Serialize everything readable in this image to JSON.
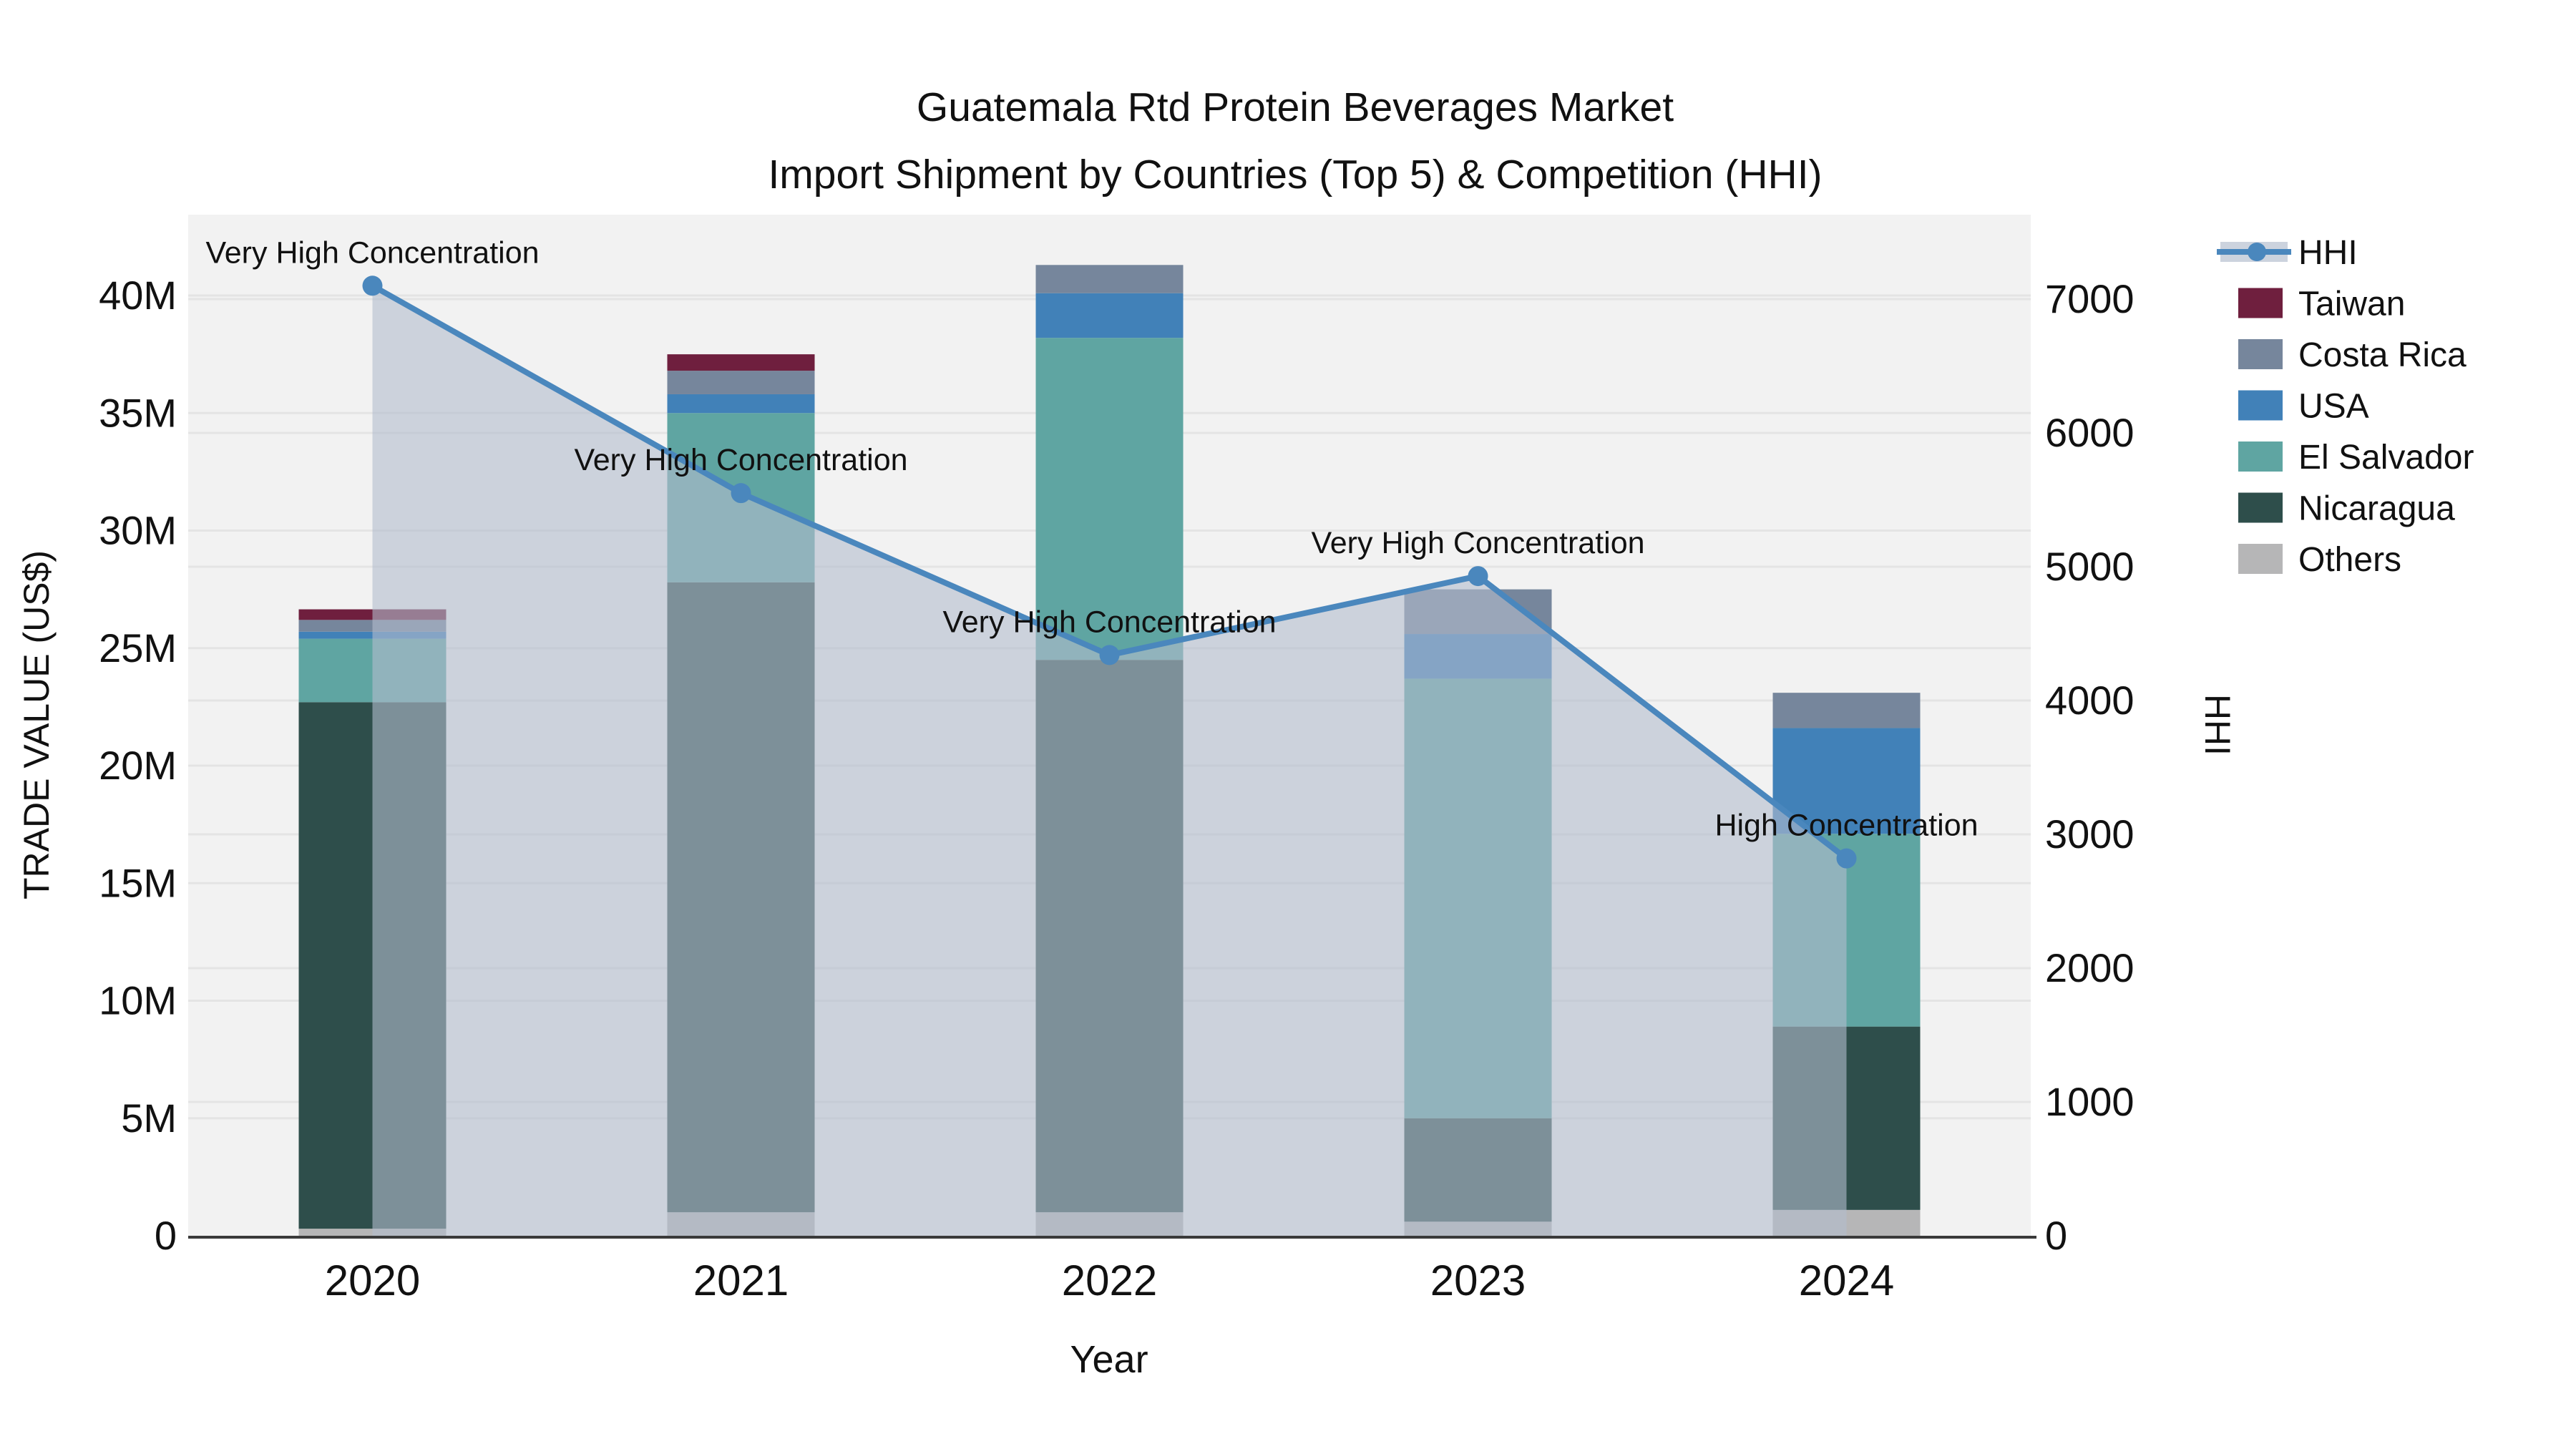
{
  "title": {
    "line1": "Guatemala Rtd Protein Beverages Market",
    "line2": "Import Shipment by Countries (Top 5) & Competition (HHI)"
  },
  "axes": {
    "x_label": "Year",
    "y_left_label": "TRADE VALUE (US$)",
    "y_right_label": "HHI",
    "y_left_ticks": [
      "0",
      "5M",
      "10M",
      "15M",
      "20M",
      "25M",
      "30M",
      "35M",
      "40M"
    ],
    "y_right_ticks": [
      "0",
      "1000",
      "2000",
      "3000",
      "4000",
      "5000",
      "6000",
      "7000"
    ]
  },
  "legend": {
    "position": "right",
    "items": [
      {
        "label": "HHI",
        "type": "line",
        "color": "#4a87bd"
      },
      {
        "label": "Taiwan",
        "type": "swatch",
        "color": "#6f1f3e"
      },
      {
        "label": "Costa Rica",
        "type": "swatch",
        "color": "#76869c"
      },
      {
        "label": "USA",
        "type": "swatch",
        "color": "#4181b8"
      },
      {
        "label": "El Salvador",
        "type": "swatch",
        "color": "#5fa5a2"
      },
      {
        "label": "Nicaragua",
        "type": "swatch",
        "color": "#2e4e4b"
      },
      {
        "label": "Others",
        "type": "swatch",
        "color": "#b6b6b7"
      }
    ]
  },
  "chart_data": {
    "type": "bar",
    "subtype": "stacked-bar-with-line-overlay",
    "title": "Guatemala Rtd Protein Beverages Market — Import Shipment by Countries (Top 5) & Competition (HHI)",
    "categories": [
      "2020",
      "2021",
      "2022",
      "2023",
      "2024"
    ],
    "unit_left": "US$ millions",
    "unit_right": "HHI index",
    "xlabel": "Year",
    "ylabel_left": "TRADE VALUE (US$)",
    "ylabel_right": "HHI",
    "ylim_left_musd": [
      0,
      43.4
    ],
    "ylim_right": [
      0,
      7630
    ],
    "grid": true,
    "legend_position": "right",
    "stack_order_bottom_to_top": [
      "Others",
      "Nicaragua",
      "El Salvador",
      "USA",
      "Costa Rica",
      "Taiwan"
    ],
    "series": [
      {
        "name": "Others",
        "color": "#b6b6b7",
        "values_musd": [
          0.3,
          1.0,
          1.0,
          0.6,
          1.1
        ]
      },
      {
        "name": "Nicaragua",
        "color": "#2e4e4b",
        "values_musd": [
          22.4,
          26.8,
          23.5,
          4.4,
          7.8
        ]
      },
      {
        "name": "El Salvador",
        "color": "#5fa5a2",
        "values_musd": [
          2.7,
          7.2,
          13.7,
          18.7,
          8.2
        ]
      },
      {
        "name": "USA",
        "color": "#4181b8",
        "values_musd": [
          0.3,
          0.8,
          1.9,
          1.9,
          4.5
        ]
      },
      {
        "name": "Costa Rica",
        "color": "#76869c",
        "values_musd": [
          0.5,
          1.0,
          1.2,
          1.9,
          1.5
        ]
      },
      {
        "name": "Taiwan",
        "color": "#6f1f3e",
        "values_musd": [
          0.45,
          0.7,
          0,
          0,
          0
        ]
      }
    ],
    "bar_totals_musd": [
      26.65,
      37.5,
      41.3,
      27.5,
      23.1
    ],
    "line_series": {
      "name": "HHI",
      "color": "#4a87bd",
      "area_fill": "rgba(178,188,205,0.6)",
      "values": [
        7100,
        5550,
        4340,
        4930,
        2820
      ]
    },
    "annotations": [
      {
        "category": "2020",
        "text": "Very High Concentration"
      },
      {
        "category": "2021",
        "text": "Very High Concentration"
      },
      {
        "category": "2022",
        "text": "Very High Concentration"
      },
      {
        "category": "2023",
        "text": "Very High Concentration"
      },
      {
        "category": "2024",
        "text": "High Concentration"
      }
    ]
  },
  "style": {
    "plot_bg": "#f2f2f2",
    "grid_color": "#e4e4e4",
    "axis_line_color": "#3a3a3a",
    "text_color": "#111111",
    "legend_area_swatch": "#ccd3de"
  }
}
